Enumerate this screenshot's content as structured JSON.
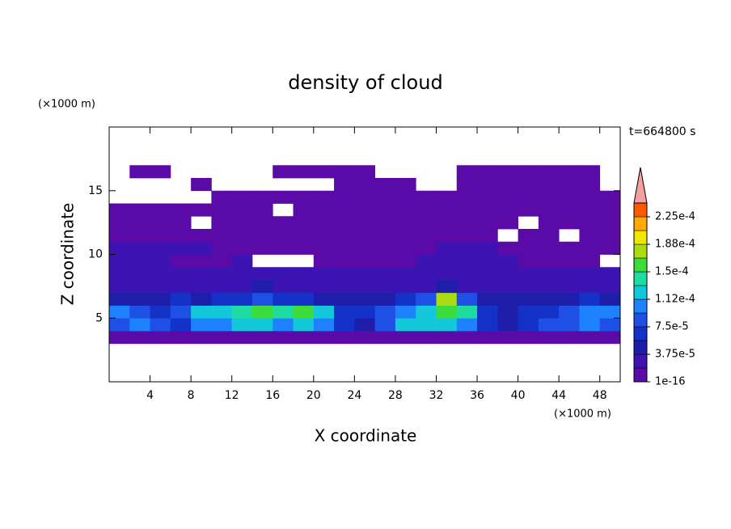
{
  "chart_data": {
    "type": "contour",
    "title": "density of cloud",
    "x_label": "X coordinate",
    "y_label": "Z coordinate",
    "x_unit": "(×1000 m)",
    "y_unit": "(×1000 m)",
    "annotation": "t=664800 s",
    "xlim": [
      0,
      50
    ],
    "ylim": [
      0,
      20
    ],
    "xticks": [
      4,
      8,
      12,
      16,
      20,
      24,
      28,
      32,
      36,
      40,
      44,
      48
    ],
    "yticks": [
      5,
      10,
      15
    ],
    "x": [
      1,
      3,
      5,
      7,
      9,
      11,
      13,
      15,
      17,
      19,
      21,
      23,
      25,
      27,
      29,
      31,
      33,
      35,
      37,
      39,
      41,
      43,
      45,
      47,
      49
    ],
    "y": [
      3.5,
      4.5,
      5.5,
      6.5,
      7.5,
      8.5,
      9.5,
      10.5,
      11.5,
      12.5,
      13.5,
      14.5,
      15.5,
      16.5
    ],
    "values": [
      [
        1e-05,
        1e-05,
        1e-05,
        1e-05,
        1e-05,
        1e-05,
        1e-05,
        1e-05,
        1e-05,
        1e-05,
        1e-05,
        1e-05,
        1e-05,
        1e-05,
        1e-05,
        1e-05,
        1e-05,
        1e-05,
        1e-05,
        1e-05,
        1e-05,
        1e-05,
        1e-05,
        1e-05,
        1e-05
      ],
      [
        8e-05,
        0.0001,
        8e-05,
        6e-05,
        0.0001,
        0.0001,
        0.00012,
        0.00012,
        0.0001,
        0.00012,
        0.0001,
        6e-05,
        4.5e-05,
        8e-05,
        0.00012,
        0.00012,
        0.00012,
        0.0001,
        6e-05,
        4.5e-05,
        6e-05,
        8e-05,
        8e-05,
        0.0001,
        8e-05
      ],
      [
        0.0001,
        8e-05,
        6e-05,
        8e-05,
        0.00012,
        0.00012,
        0.00014,
        0.00016,
        0.00014,
        0.00016,
        0.00012,
        6e-05,
        6e-05,
        8e-05,
        0.0001,
        0.00012,
        0.00016,
        0.00014,
        6e-05,
        4.5e-05,
        6e-05,
        6e-05,
        8e-05,
        0.0001,
        0.0001
      ],
      [
        4.5e-05,
        4.5e-05,
        4.5e-05,
        6e-05,
        4.5e-05,
        6e-05,
        6e-05,
        8e-05,
        6e-05,
        6e-05,
        4.5e-05,
        4.5e-05,
        4.5e-05,
        4.5e-05,
        6e-05,
        8e-05,
        0.00018,
        8e-05,
        4.5e-05,
        4.5e-05,
        4.5e-05,
        4.5e-05,
        4.5e-05,
        6e-05,
        4.5e-05
      ],
      [
        2.5e-05,
        2.5e-05,
        2.5e-05,
        2.5e-05,
        2.5e-05,
        2.5e-05,
        2.5e-05,
        4.5e-05,
        2.5e-05,
        2.5e-05,
        2.5e-05,
        2.5e-05,
        2.5e-05,
        2.5e-05,
        2.5e-05,
        2.5e-05,
        4.5e-05,
        2.5e-05,
        2.5e-05,
        2.5e-05,
        2.5e-05,
        2.5e-05,
        2.5e-05,
        2.5e-05,
        2.5e-05
      ],
      [
        2.5e-05,
        2.5e-05,
        2.5e-05,
        2.5e-05,
        2.5e-05,
        2.5e-05,
        2.5e-05,
        2.5e-05,
        2.5e-05,
        2.5e-05,
        2.5e-05,
        2.5e-05,
        2.5e-05,
        2.5e-05,
        2.5e-05,
        2.5e-05,
        2.5e-05,
        2.5e-05,
        2.5e-05,
        2.5e-05,
        2.5e-05,
        2.5e-05,
        2.5e-05,
        2.5e-05,
        2.5e-05
      ],
      [
        2.5e-05,
        2.5e-05,
        2.5e-05,
        1e-05,
        1e-05,
        1e-05,
        2.5e-05,
        null,
        null,
        null,
        1e-05,
        1e-05,
        1e-05,
        1e-05,
        1e-05,
        2.5e-05,
        2.5e-05,
        2.5e-05,
        2.5e-05,
        2.5e-05,
        1e-05,
        1e-05,
        1e-05,
        1e-05,
        null
      ],
      [
        2.5e-05,
        2.5e-05,
        2.5e-05,
        2.5e-05,
        2.5e-05,
        1e-05,
        1e-05,
        1e-05,
        1e-05,
        1e-05,
        1e-05,
        1e-05,
        1e-05,
        1e-05,
        1e-05,
        1e-05,
        2.5e-05,
        2.5e-05,
        2.5e-05,
        1e-05,
        1e-05,
        1e-05,
        1e-05,
        1e-05,
        1e-05
      ],
      [
        1e-05,
        1e-05,
        1e-05,
        1e-05,
        1e-05,
        1e-05,
        1e-05,
        1e-05,
        1e-05,
        1e-05,
        1e-05,
        1e-05,
        1e-05,
        1e-05,
        1e-05,
        1e-05,
        1e-05,
        1e-05,
        1e-05,
        null,
        1e-05,
        1e-05,
        null,
        1e-05,
        1e-05
      ],
      [
        1e-05,
        1e-05,
        1e-05,
        1e-05,
        null,
        1e-05,
        1e-05,
        1e-05,
        1e-05,
        1e-05,
        1e-05,
        1e-05,
        1e-05,
        1e-05,
        1e-05,
        1e-05,
        1e-05,
        1e-05,
        1e-05,
        1e-05,
        null,
        1e-05,
        1e-05,
        1e-05,
        1e-05
      ],
      [
        1e-05,
        1e-05,
        1e-05,
        1e-05,
        1e-05,
        1e-05,
        1e-05,
        1e-05,
        null,
        1e-05,
        1e-05,
        1e-05,
        1e-05,
        1e-05,
        1e-05,
        1e-05,
        1e-05,
        1e-05,
        1e-05,
        1e-05,
        1e-05,
        1e-05,
        1e-05,
        1e-05,
        1e-05
      ],
      [
        null,
        null,
        null,
        null,
        null,
        1e-05,
        1e-05,
        1e-05,
        1e-05,
        1e-05,
        1e-05,
        1e-05,
        1e-05,
        1e-05,
        1e-05,
        1e-05,
        1e-05,
        1e-05,
        1e-05,
        1e-05,
        1e-05,
        1e-05,
        1e-05,
        1e-05,
        1e-05
      ],
      [
        null,
        null,
        null,
        null,
        1e-05,
        null,
        null,
        null,
        null,
        null,
        null,
        1e-05,
        1e-05,
        1e-05,
        1e-05,
        null,
        null,
        1e-05,
        1e-05,
        1e-05,
        1e-05,
        1e-05,
        1e-05,
        1e-05,
        null
      ],
      [
        null,
        1e-05,
        1e-05,
        null,
        null,
        null,
        null,
        null,
        1e-05,
        1e-05,
        1e-05,
        1e-05,
        1e-05,
        null,
        null,
        null,
        null,
        1e-05,
        1e-05,
        1e-05,
        1e-05,
        1e-05,
        1e-05,
        1e-05,
        null
      ]
    ],
    "levels": [
      1e-16,
      1.875e-05,
      3.75e-05,
      5.625e-05,
      7.5e-05,
      9.375e-05,
      0.0001125,
      0.00013125,
      0.00015,
      0.00016875,
      0.0001875,
      0.00020625,
      0.000225,
      0.00024375
    ],
    "colors": [
      "#5a0aa6",
      "#3c14b4",
      "#1e1eaa",
      "#1432c8",
      "#1e50e6",
      "#1e82ff",
      "#14c8dc",
      "#1edca0",
      "#3cdc3c",
      "#aadc14",
      "#f0e600",
      "#ffaa00",
      "#ff5a00"
    ],
    "extend_color": "#f5a0a0",
    "colorbar_ticks": [
      {
        "value": 1e-16,
        "label": "1e-16"
      },
      {
        "value": 3.75e-05,
        "label": "3.75e-5"
      },
      {
        "value": 7.5e-05,
        "label": "7.5e-5"
      },
      {
        "value": 0.0001125,
        "label": "1.12e-4"
      },
      {
        "value": 0.00015,
        "label": "1.5e-4"
      },
      {
        "value": 0.0001875,
        "label": "1.88e-4"
      },
      {
        "value": 0.000225,
        "label": "2.25e-4"
      }
    ]
  }
}
